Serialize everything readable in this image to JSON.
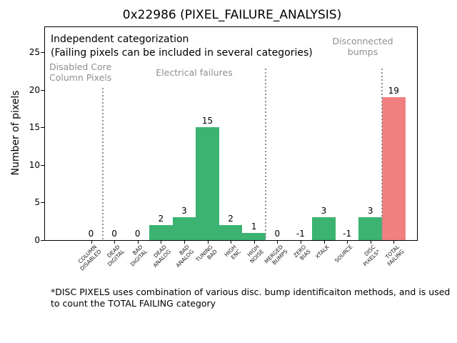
{
  "title": "0x22986 (PIXEL_FAILURE_ANALYSIS)",
  "annotations": {
    "independent": "Independent categorization\n(Failing pixels can be included in several categories)",
    "disabled_core": "Disabled Core\nColumn Pixels",
    "electrical": "Electrical failures",
    "disconnected": "Disconnected\nbumps",
    "footnote": "*DISC PIXELS uses combination of various disc. bump identificaiton methods, and is used\nto count the TOTAL FAILING category"
  },
  "colors": {
    "normal_bar": "#3cb371",
    "total_bar": "#f08080",
    "annotation_gray": "#8f8f8f"
  },
  "chart_data": {
    "type": "bar",
    "title": "0x22986 (PIXEL_FAILURE_ANALYSIS)",
    "xlabel": "",
    "ylabel": "Number of pixels",
    "categories": [
      "COLUMN\nDISABLED",
      "DEAD\nDIGITAL",
      "BAD\nDIGITAL",
      "DEAD\nANALOG",
      "BAD\nANALOG",
      "TUNING\nBAD",
      "HIGH\nENC",
      "HIGH\nNOISE",
      "MERGED\nBUMPS",
      "ZERO\nBIAS",
      "XTALK",
      "SOURCE",
      "DISC\nPIXELS*",
      "TOTAL\nFAILING"
    ],
    "values": [
      0,
      0,
      0,
      2,
      3,
      15,
      2,
      1,
      0,
      -1,
      3,
      -1,
      3,
      19
    ],
    "bar_colors": [
      "#3cb371",
      "#3cb371",
      "#3cb371",
      "#3cb371",
      "#3cb371",
      "#3cb371",
      "#3cb371",
      "#3cb371",
      "#3cb371",
      "#3cb371",
      "#3cb371",
      "#3cb371",
      "#3cb371",
      "#f08080"
    ],
    "bar_width": 1.0,
    "value_labels_shown": true,
    "yticks": [
      0,
      5,
      10,
      15,
      20,
      25
    ],
    "ylim": [
      0,
      28.4
    ],
    "grid": false,
    "legend": false,
    "separators_after_index": [
      0,
      7,
      12
    ],
    "group_labels": [
      "Disabled Core Column Pixels",
      "Electrical failures",
      "Disconnected bumps"
    ]
  }
}
